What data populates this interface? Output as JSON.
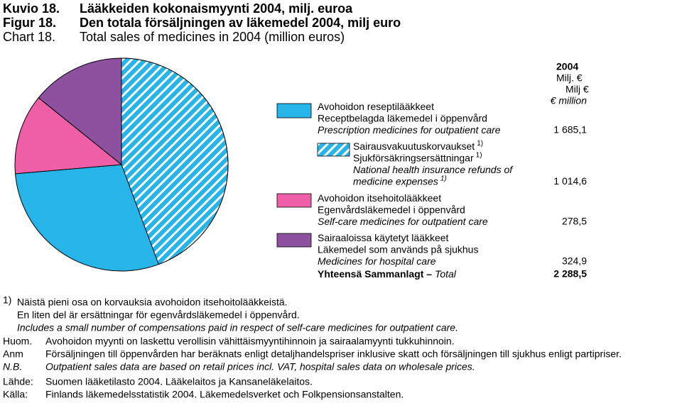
{
  "chart_data": {
    "type": "pie",
    "title": [
      {
        "label": "Kuvio 18.",
        "text": "Lääkkeiden kokonaismyynti 2004, milj. euroa"
      },
      {
        "label": "Figur 18.",
        "text": "Den totala försäljningen av läkemedel 2004, milj euro"
      },
      {
        "label": "Chart 18.",
        "text": "Total sales of medicines in 2004 (million euros)"
      }
    ],
    "value_header": [
      "2004",
      "Milj. €",
      "Milj €",
      "€ million"
    ],
    "slices": [
      {
        "labels": [
          {
            "text": "Avohoidon reseptilääkkeet"
          },
          {
            "text": "Receptbelagda läkemedel i öppenvård"
          },
          {
            "text": "Prescription medicines for outpatient care"
          }
        ],
        "value": 1685.1,
        "value_label": "1 685,1",
        "color": "#27b5e9"
      },
      {
        "labels": [
          {
            "text": "Sairausvakuutuskorvaukset",
            "sup": "1)"
          },
          {
            "text": "Sjukförsäkringsersättningar",
            "sup": "1)"
          },
          {
            "text": "National health insurance refunds of"
          },
          {
            "text": "medicine expenses",
            "sup": "1)"
          }
        ],
        "value": 1014.6,
        "value_label": "1 014,6",
        "color": "#27b5e9",
        "pattern": "hatch",
        "within": 0
      },
      {
        "labels": [
          {
            "text": "Avohoidon itsehoitolääkkeet"
          },
          {
            "text": "Egenvårdsläkemedel i öppenvård"
          },
          {
            "text": "Self-care medicines for outpatient care"
          }
        ],
        "value": 278.5,
        "value_label": "278,5",
        "color": "#ee5fa8"
      },
      {
        "labels": [
          {
            "text": "Sairaaloissa käytetyt lääkkeet"
          },
          {
            "text": "Läkemedel som används på sjukhus"
          },
          {
            "text": "Medicines for hospital care"
          }
        ],
        "value": 324.9,
        "value_label": "324,9",
        "color": "#8e519f"
      }
    ],
    "total": {
      "label": [
        "Yhteensä  Sammanlagt –",
        "Total"
      ],
      "value": 2288.5,
      "value_label": "2 288,5"
    },
    "footnote": {
      "marker": "1)",
      "lines": [
        "Näistä pieni osa on korvauksia avohoidon itsehoitolääkkeistä.",
        "En liten del är ersättningar för egenvårdsläkemedel i öppenvård.",
        "Includes a small number of compensations paid in respect of self-care medicines for outpatient care."
      ]
    },
    "notes": [
      [
        "Huom.",
        "Avohoidon myynti on laskettu verollisin vähittäismyyntihinnoin ja sairaalamyynti tukkuhinnoin."
      ],
      [
        "Anm",
        "Försäljningen till öppenvården har beräknats enligt detaljhandelspriser inklusive skatt och försäljningen till sjukhus enligt partipriser."
      ],
      [
        "N.B.",
        "Outpatient sales data are based on retail prices incl. VAT, hospital sales data on wholesale prices."
      ],
      [
        "Lähde:",
        "Suomen lääketilasto 2004. Lääkelaitos ja Kansaneläkelaitos."
      ],
      [
        "Källa:",
        "Finlands läkemedelsstatistik 2004. Läkemedelsverket och Folkpensionsanstalten."
      ]
    ]
  }
}
